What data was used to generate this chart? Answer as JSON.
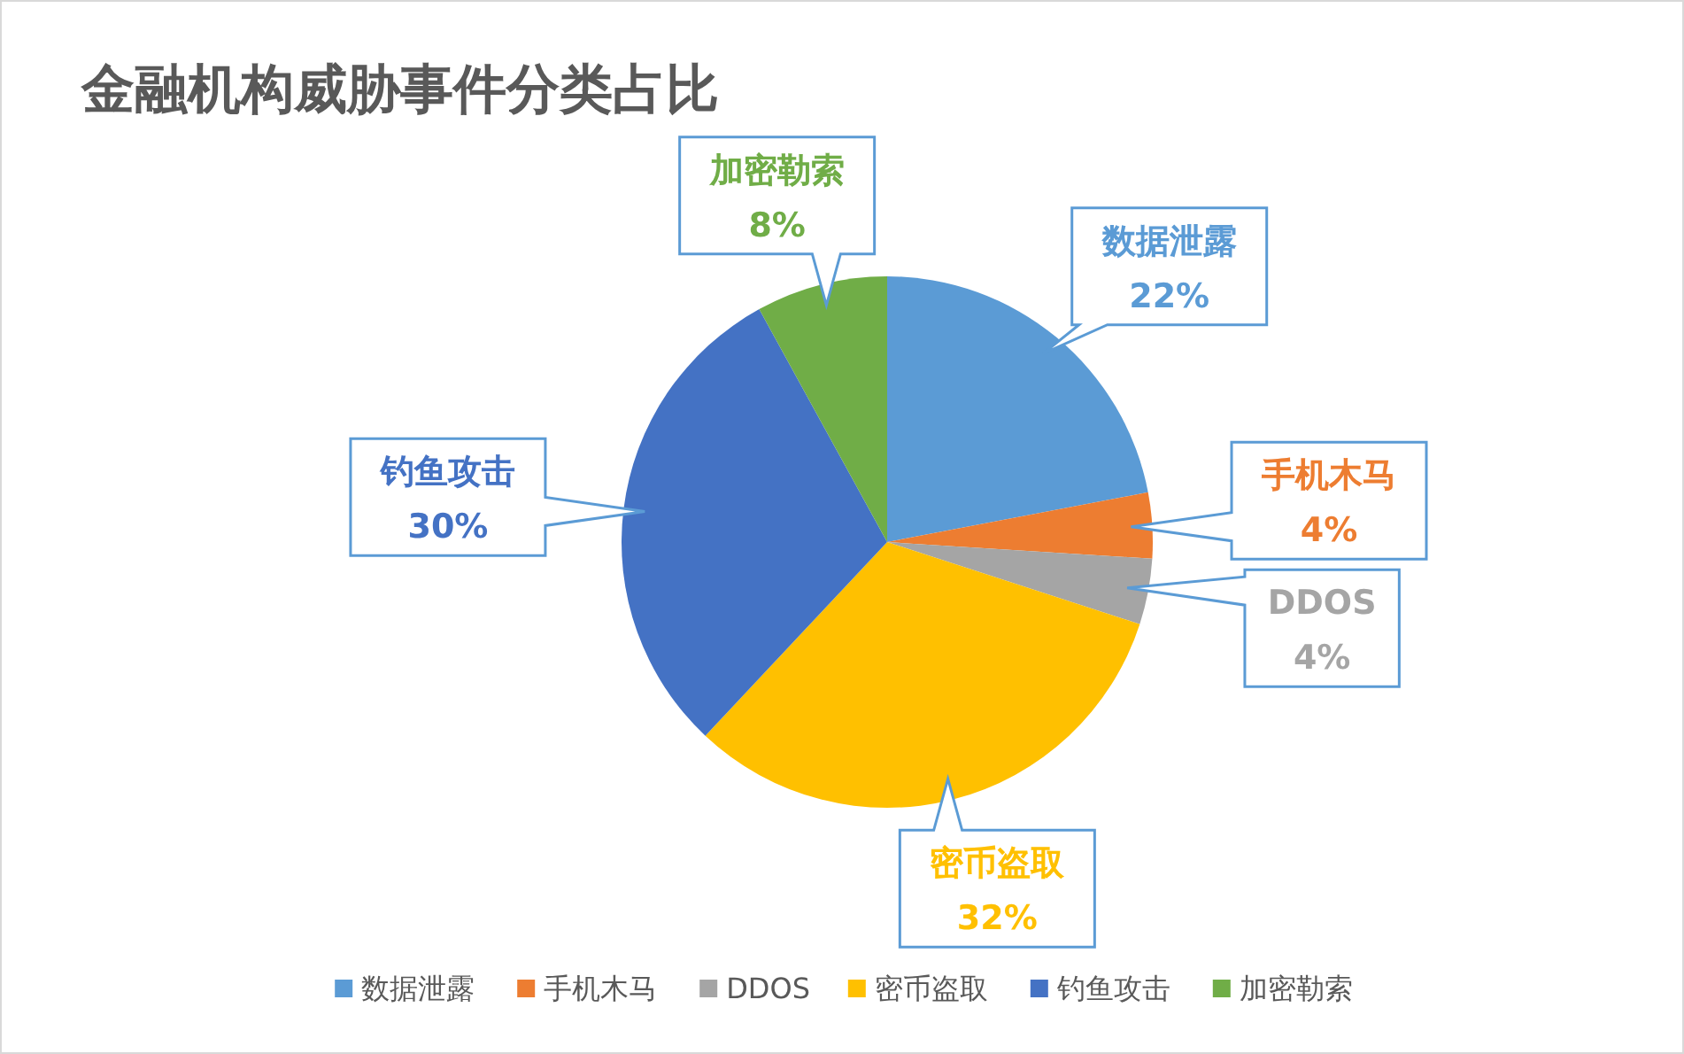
{
  "chart_data": {
    "type": "pie",
    "title": "金融机构威胁事件分类占比",
    "categories": [
      "数据泄露",
      "手机木马",
      "DDOS",
      "密币盗取",
      "钓鱼攻击",
      "加密勒索"
    ],
    "values": [
      22,
      4,
      4,
      32,
      30,
      8
    ],
    "colors": [
      "#5b9bd5",
      "#ed7d31",
      "#a5a5a5",
      "#ffc000",
      "#4472c4",
      "#70ad47"
    ],
    "value_labels": [
      "22%",
      "4%",
      "4%",
      "32%",
      "30%",
      "8%"
    ],
    "legend": "bottom"
  }
}
